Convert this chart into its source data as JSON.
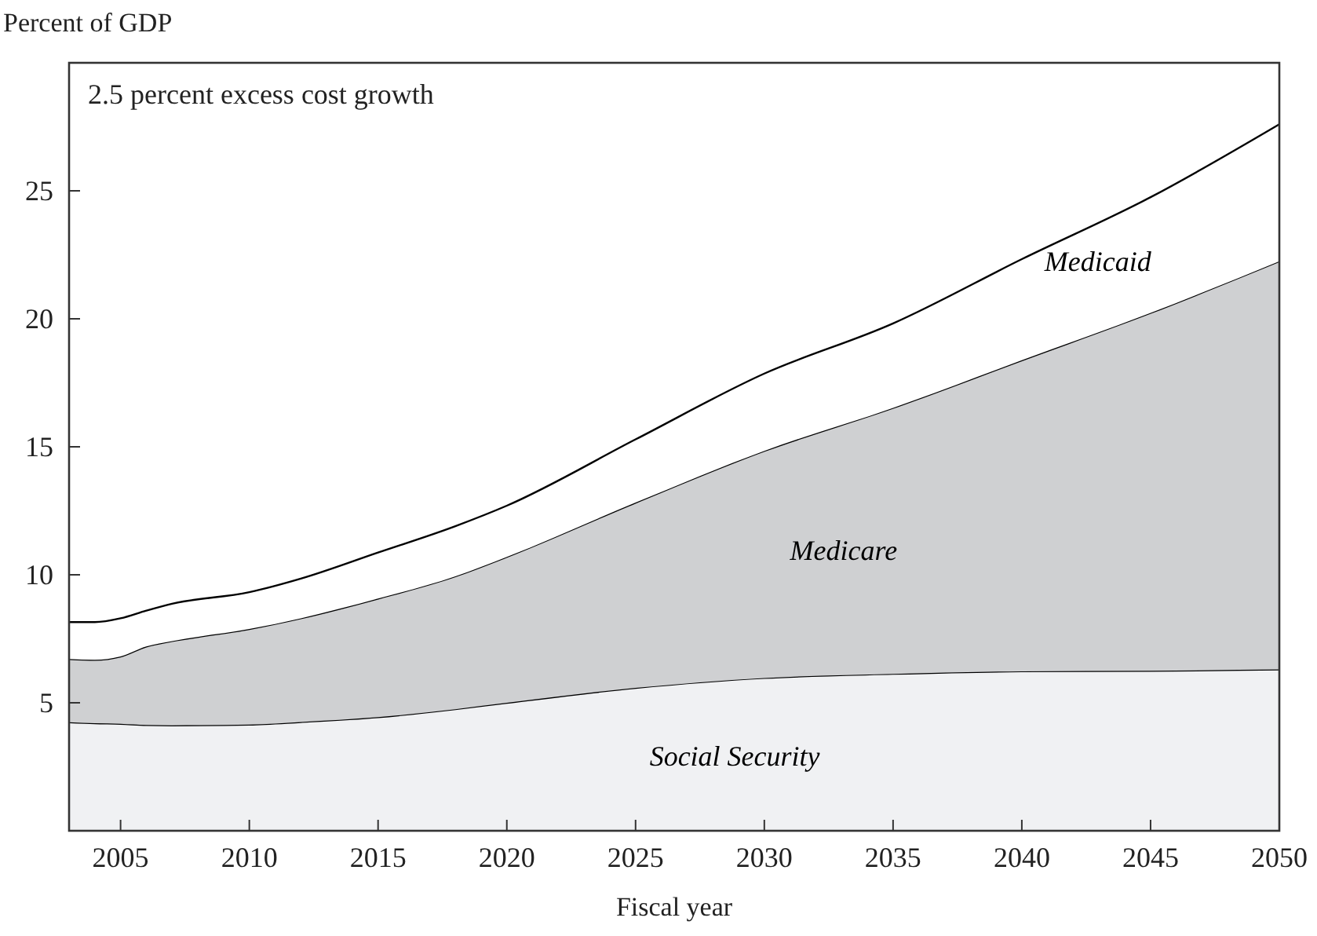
{
  "chart_data": {
    "type": "area",
    "stacked": true,
    "title": "2.5 percent excess cost growth",
    "ylabel": "Percent of GDP",
    "xlabel": "Fiscal year",
    "x": [
      2003,
      2004,
      2005,
      2006,
      2007,
      2010,
      2012,
      2015,
      2018,
      2020,
      2025,
      2030,
      2035,
      2040,
      2045,
      2050
    ],
    "series": [
      {
        "name": "Social Security",
        "color": "#f0f1f3",
        "values": [
          4.24,
          4.2,
          4.18,
          4.13,
          4.12,
          4.15,
          4.25,
          4.44,
          4.75,
          5.0,
          5.58,
          5.97,
          6.13,
          6.23,
          6.25,
          6.3
        ]
      },
      {
        "name": "Medicare",
        "color": "#cfd0d2",
        "values": [
          2.47,
          2.48,
          2.63,
          3.07,
          3.29,
          3.73,
          4.05,
          4.63,
          5.19,
          5.7,
          7.24,
          8.87,
          10.39,
          12.15,
          13.98,
          15.95
        ]
      },
      {
        "name": "Medicaid",
        "color": "#ffffff",
        "values": [
          1.44,
          1.47,
          1.49,
          1.4,
          1.46,
          1.44,
          1.55,
          1.8,
          1.96,
          2.0,
          2.47,
          3.02,
          3.3,
          3.95,
          4.52,
          5.35
        ]
      }
    ],
    "xlim": [
      2003,
      2050
    ],
    "xticks": [
      2005,
      2010,
      2015,
      2020,
      2025,
      2030,
      2035,
      2040,
      2045,
      2050
    ],
    "ylim": [
      0,
      30
    ],
    "yticks": [
      5,
      10,
      15,
      20,
      25
    ],
    "grid": false,
    "legend": false
  }
}
